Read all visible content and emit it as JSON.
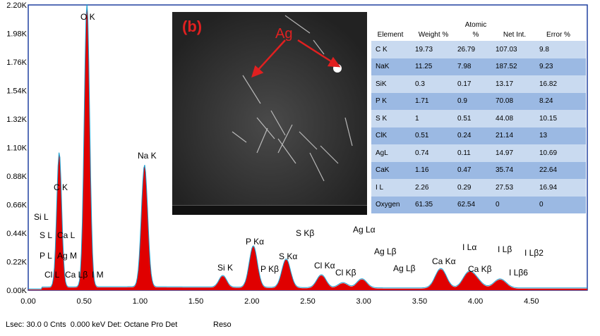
{
  "chart_data": {
    "type": "line",
    "title": "",
    "xlabel": "",
    "ylabel": "",
    "xlim": [
      0,
      5.0
    ],
    "ylim": [
      0,
      2.2
    ],
    "x_ticks": [
      "0.00",
      "0.50",
      "1.00",
      "1.50",
      "2.00",
      "2.50",
      "3.00",
      "3.50",
      "4.00",
      "4.50"
    ],
    "y_ticks": [
      "0.00K",
      "0.22K",
      "0.44K",
      "0.66K",
      "0.88K",
      "1.10K",
      "1.32K",
      "1.54K",
      "1.76K",
      "1.98K",
      "2.20K"
    ],
    "y_unit": "K counts",
    "series": [
      {
        "peaks": [
          {
            "label": "C K",
            "x": 0.277,
            "y": 1.04
          },
          {
            "label": "O K",
            "x": 0.525,
            "y": 2.2
          },
          {
            "label": "Na K",
            "x": 1.04,
            "y": 0.94
          },
          {
            "label": "Si K",
            "x": 1.74,
            "y": 0.09
          },
          {
            "label": "P Kα",
            "x": 2.013,
            "y": 0.32
          },
          {
            "label": "S Kα",
            "x": 2.307,
            "y": 0.22
          },
          {
            "label": "Cl Kα",
            "x": 2.622,
            "y": 0.1
          },
          {
            "label": "Cl Kβ",
            "x": 2.815,
            "y": 0.04
          },
          {
            "label": "Ag Lα",
            "x": 2.984,
            "y": 0.07
          },
          {
            "label": "Ca Kα",
            "x": 3.69,
            "y": 0.15
          },
          {
            "label": "Ca Kβ",
            "x": 4.012,
            "y": 0.05
          },
          {
            "label": "I Lα",
            "x": 3.937,
            "y": 0.11
          },
          {
            "label": "I Lβ",
            "x": 4.22,
            "y": 0.07
          }
        ]
      }
    ],
    "annotations": [
      "Si L",
      "S L",
      "Ca L",
      "P L",
      "Ag M",
      "Cl L",
      "Ca Lβ",
      "I M",
      "C K",
      "O K",
      "Na K",
      "Si K",
      "P Kα",
      "P Kβ",
      "S Kβ",
      "S Kα",
      "Cl Kα",
      "Cl Kβ",
      "Ag Lα",
      "Ag Lβ",
      "Ag Lβ",
      "Ca Kα",
      "I Lα",
      "I Lβ",
      "I Lβ2",
      "Ca Kβ",
      "I Lβ6"
    ],
    "colors": {
      "fill": "#e00000",
      "line": "#1a9fd0",
      "frame": "#2040a0",
      "grid": "#d8d8d8"
    }
  },
  "peak_labels": {
    "si_l": "Si L",
    "s_l": "S L",
    "ca_l": "Ca L",
    "p_l": "P L",
    "ag_m": "Ag M",
    "cl_l": "Cl L",
    "ca_lb": "Ca Lβ",
    "i_m": "I M",
    "c_k": "C K",
    "o_k": "O K",
    "na_k": "Na K",
    "si_k": "Si K",
    "p_ka": "P Kα",
    "p_kb": "P Kβ",
    "s_kb": "S Kβ",
    "s_ka": "S Kα",
    "cl_ka": "Cl Kα",
    "cl_kb": "Cl Kβ",
    "ag_la": "Ag Lα",
    "ag_lb_1": "Ag Lβ",
    "ag_lb_2": "Ag Lβ",
    "ca_ka": "Ca Kα",
    "i_la": "I Lα",
    "i_lb": "I Lβ",
    "i_lb2": "I Lβ2",
    "ca_kb": "Ca Kβ",
    "i_lb6": "I Lβ6"
  },
  "inset": {
    "panel_label": "(b)",
    "arrow_label": "Ag"
  },
  "table": {
    "headers": {
      "element": "Element",
      "weight": "Weight %",
      "atomic_top": "Atomic",
      "atomic_bottom": "%",
      "net": "Net Int.",
      "error": "Error %"
    },
    "rows": [
      {
        "element": "C K",
        "weight": "19.73",
        "atomic": "26.79",
        "net": "107.03",
        "error": "9.8"
      },
      {
        "element": "NaK",
        "weight": "11.25",
        "atomic": "7.98",
        "net": "187.52",
        "error": "9.23"
      },
      {
        "element": "SiK",
        "weight": "0.3",
        "atomic": "0.17",
        "net": "13.17",
        "error": "16.82"
      },
      {
        "element": "P K",
        "weight": "1.71",
        "atomic": "0.9",
        "net": "70.08",
        "error": "8.24"
      },
      {
        "element": "S K",
        "weight": "1",
        "atomic": "0.51",
        "net": "44.08",
        "error": "10.15"
      },
      {
        "element": "ClK",
        "weight": "0.51",
        "atomic": "0.24",
        "net": "21.14",
        "error": "13"
      },
      {
        "element": "AgL",
        "weight": "0.74",
        "atomic": "0.11",
        "net": "14.97",
        "error": "10.69"
      },
      {
        "element": "CaK",
        "weight": "1.16",
        "atomic": "0.47",
        "net": "35.74",
        "error": "22.64"
      },
      {
        "element": "I L",
        "weight": "2.26",
        "atomic": "0.29",
        "net": "27.53",
        "error": "16.94"
      },
      {
        "element": "Oxygen",
        "weight": "61.35",
        "atomic": "62.54",
        "net": "0",
        "error": "0"
      }
    ]
  },
  "status": {
    "line": "Lsec: 30.0 0 Cnts  0.000 keV Det: Octane Pro Det",
    "reso": "Reso"
  }
}
